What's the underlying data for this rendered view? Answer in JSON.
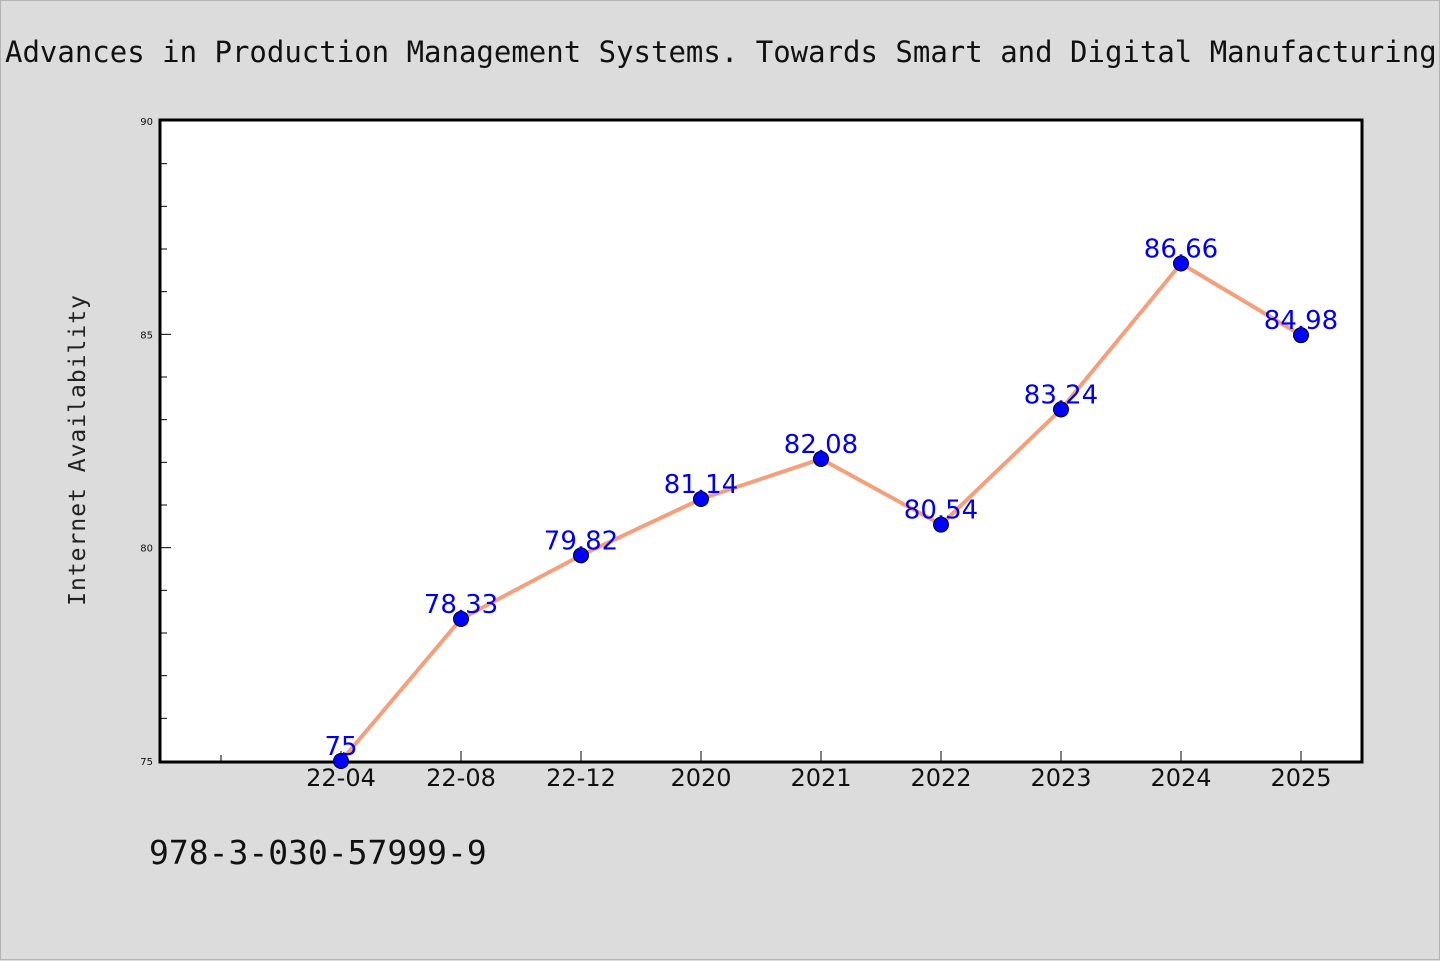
{
  "chart_data": {
    "type": "line",
    "title": "Advances in Production Management Systems. Towards Smart and Digital Manufacturing",
    "xlabel": "",
    "ylabel": "Internet Availability",
    "categories": [
      "22-04",
      "22-08",
      "22-12",
      "2020",
      "2021",
      "2022",
      "2023",
      "2024",
      "2025"
    ],
    "series": [
      {
        "values": [
          75,
          78.33,
          79.82,
          81.14,
          82.08,
          80.54,
          83.24,
          86.66,
          84.98
        ]
      }
    ],
    "data_labels": [
      "75",
      "78.33",
      "79.82",
      "81.14",
      "82.08",
      "80.54",
      "83.24",
      "86.66",
      "84.98"
    ],
    "ylim": [
      75,
      90
    ],
    "yticks": [
      75,
      80,
      85,
      90
    ],
    "grid": false,
    "legend": "none",
    "colors": {
      "line": "#f4a07c",
      "marker": "#0000ff",
      "label": "#0000ee",
      "background": "#dcdcdc",
      "plot_background": "#ffffff"
    }
  },
  "caption": "978-3-030-57999-9"
}
